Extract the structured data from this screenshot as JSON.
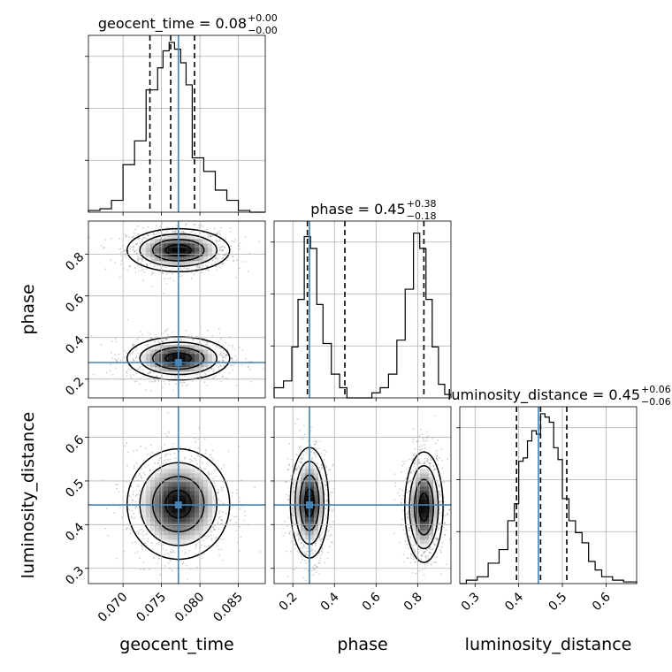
{
  "chart_data": {
    "type": "corner",
    "grid": true,
    "truth_color": "#4682b4",
    "params": [
      {
        "name": "geocent_time",
        "axis_label": "geocent_time",
        "range": [
          0.0655,
          0.0885
        ],
        "ticks": [
          0.07,
          0.075,
          0.08,
          0.085
        ],
        "tick_labels": [
          "0.070",
          "0.075",
          "0.080",
          "0.085"
        ],
        "truth": 0.0772,
        "quantiles": [
          0.0735,
          0.0762,
          0.0793
        ],
        "title": {
          "main": "geocent_time = 0.08",
          "plus": "+0.00",
          "minus": "−0.00"
        },
        "hist_edges": [
          0.0655,
          0.067,
          0.0685,
          0.07,
          0.0715,
          0.073,
          0.0745,
          0.0752,
          0.076,
          0.0767,
          0.0775,
          0.0782,
          0.079,
          0.0805,
          0.082,
          0.0835,
          0.085,
          0.0865,
          0.0885
        ],
        "hist_counts": [
          0.01,
          0.02,
          0.07,
          0.28,
          0.42,
          0.72,
          0.85,
          0.95,
          1.0,
          0.96,
          0.88,
          0.75,
          0.32,
          0.24,
          0.13,
          0.07,
          0.01,
          0.0
        ]
      },
      {
        "name": "phase",
        "axis_label": "phase",
        "range": [
          0.11,
          0.96
        ],
        "ticks": [
          0.2,
          0.4,
          0.6,
          0.8
        ],
        "tick_labels": [
          "0.2",
          "0.4",
          "0.6",
          "0.8"
        ],
        "truth": 0.28,
        "quantiles": [
          0.27,
          0.45,
          0.83
        ],
        "title": {
          "main": "phase = 0.45",
          "plus": "+0.38",
          "minus": "−0.18"
        },
        "hist_edges": [
          0.11,
          0.155,
          0.195,
          0.225,
          0.255,
          0.285,
          0.315,
          0.345,
          0.385,
          0.425,
          0.46,
          0.49,
          0.52,
          0.55,
          0.58,
          0.62,
          0.66,
          0.7,
          0.74,
          0.78,
          0.81,
          0.84,
          0.87,
          0.9,
          0.93,
          0.96
        ],
        "hist_counts": [
          0.06,
          0.1,
          0.3,
          0.58,
          0.95,
          0.88,
          0.55,
          0.32,
          0.14,
          0.06,
          0.0,
          0.0,
          0.0,
          0.0,
          0.03,
          0.06,
          0.14,
          0.34,
          0.64,
          0.97,
          0.88,
          0.58,
          0.3,
          0.08,
          0.02
        ]
      },
      {
        "name": "luminosity_distance",
        "axis_label": "luminosity_distance",
        "range": [
          0.265,
          0.67
        ],
        "ticks": [
          0.3,
          0.4,
          0.5,
          0.6
        ],
        "tick_labels": [
          "0.3",
          "0.4",
          "0.5",
          "0.6"
        ],
        "truth": 0.445,
        "quantiles": [
          0.395,
          0.45,
          0.51
        ],
        "title": {
          "main": "luminosity_distance = 0.45",
          "plus": "+0.06",
          "minus": "−0.06"
        },
        "hist_edges": [
          0.265,
          0.28,
          0.305,
          0.33,
          0.355,
          0.375,
          0.39,
          0.4,
          0.41,
          0.42,
          0.43,
          0.44,
          0.45,
          0.46,
          0.47,
          0.48,
          0.49,
          0.5,
          0.515,
          0.53,
          0.545,
          0.56,
          0.575,
          0.59,
          0.615,
          0.64,
          0.67
        ],
        "hist_counts": [
          0.0,
          0.02,
          0.04,
          0.12,
          0.2,
          0.37,
          0.47,
          0.72,
          0.74,
          0.84,
          0.9,
          0.88,
          1.0,
          0.98,
          0.95,
          0.8,
          0.73,
          0.5,
          0.37,
          0.3,
          0.24,
          0.13,
          0.08,
          0.04,
          0.02,
          0.01
        ]
      }
    ],
    "rows": [
      {
        "param_index": 1,
        "tick_labels": [
          "0.2",
          "0.4",
          "0.6",
          "0.8"
        ]
      },
      {
        "param_index": 2,
        "tick_labels": [
          "0.3",
          "0.4",
          "0.5",
          "0.6"
        ]
      }
    ],
    "clusters": {
      "phase_vs_time": [
        {
          "cx": 0.0772,
          "cy": 0.82,
          "sx": 0.0029,
          "sy": 0.045,
          "w": 1.0
        },
        {
          "cx": 0.0772,
          "cy": 0.3,
          "sx": 0.0029,
          "sy": 0.045,
          "w": 1.0
        }
      ],
      "dist_vs_time": [
        {
          "cx": 0.0772,
          "cy": 0.447,
          "sx": 0.0029,
          "sy": 0.055,
          "w": 1.0
        }
      ],
      "dist_vs_phase": [
        {
          "cx": 0.28,
          "cy": 0.45,
          "sx": 0.04,
          "sy": 0.055,
          "w": 1.0
        },
        {
          "cx": 0.83,
          "cy": 0.44,
          "sx": 0.04,
          "sy": 0.055,
          "w": 1.0
        }
      ]
    }
  }
}
